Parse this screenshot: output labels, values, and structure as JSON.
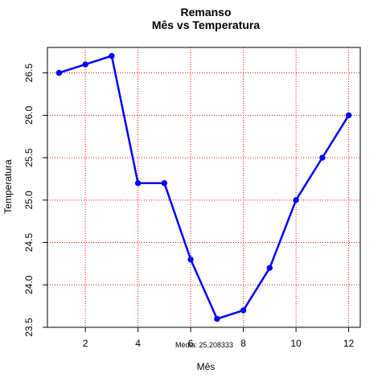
{
  "chart_data": {
    "type": "line",
    "title": "Remanso",
    "subtitle": "Mês vs Temperatura",
    "xlabel": "Mês",
    "ylabel": "Temperatura",
    "xlim": [
      0.56,
      12.44
    ],
    "ylim": [
      23.5,
      26.8
    ],
    "xticks": [
      2,
      4,
      6,
      8,
      10,
      12
    ],
    "yticks": [
      23.5,
      24.0,
      24.5,
      25.0,
      25.5,
      26.0,
      26.5
    ],
    "ytick_labels": [
      "23.5",
      "24.0",
      "24.5",
      "25.0",
      "25.5",
      "26.0",
      "26.5"
    ],
    "grid": true,
    "grid_color": "#ff0000",
    "series": [
      {
        "color": "#0000ff",
        "x": [
          1,
          2,
          3,
          4,
          5,
          6,
          7,
          8,
          9,
          10,
          11,
          12
        ],
        "values": [
          26.5,
          26.6,
          26.7,
          25.2,
          25.2,
          24.3,
          23.6,
          23.7,
          24.2,
          25.0,
          25.5,
          26.0
        ]
      }
    ],
    "annotation": "Média: 25.208333"
  }
}
